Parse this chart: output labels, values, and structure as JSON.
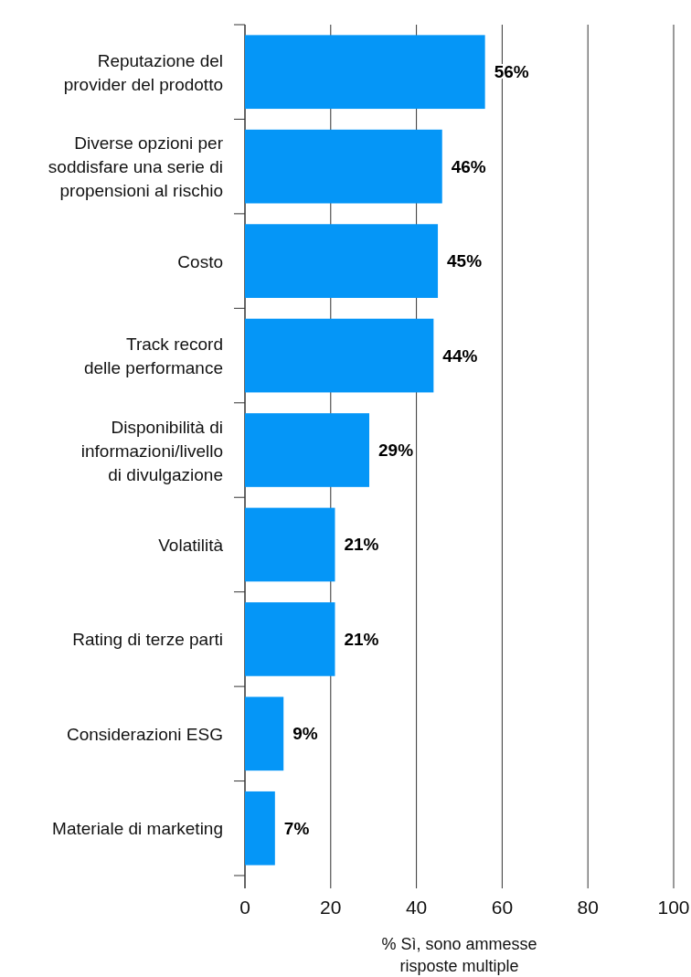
{
  "chart_data": {
    "type": "bar",
    "orientation": "horizontal",
    "categories": [
      "Reputazione del\nprovider del prodotto",
      "Diverse opzioni per\nsoddisfare una serie di\npropensioni al rischio",
      "Costo",
      "Track record\ndelle performance",
      "Disponibilità di\ninformazioni/livello\ndi divulgazione",
      "Volatilità",
      "Rating di terze parti",
      "Considerazioni ESG",
      "Materiale di marketing"
    ],
    "values": [
      56,
      46,
      45,
      44,
      29,
      21,
      21,
      9,
      7
    ],
    "value_labels": [
      "56%",
      "46%",
      "45%",
      "44%",
      "29%",
      "21%",
      "21%",
      "9%",
      "7%"
    ],
    "color": "#0596f7",
    "xlim": [
      0,
      100
    ],
    "xticks": [
      0,
      20,
      40,
      60,
      80,
      100
    ],
    "xlabel": "% Sì, sono ammesse\nrisposte multiple",
    "grid": "x"
  }
}
